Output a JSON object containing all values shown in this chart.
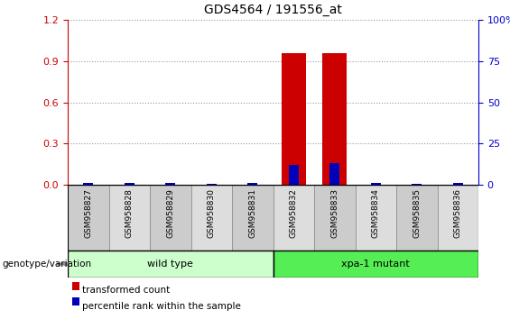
{
  "title": "GDS4564 / 191556_at",
  "samples": [
    "GSM958827",
    "GSM958828",
    "GSM958829",
    "GSM958830",
    "GSM958831",
    "GSM958832",
    "GSM958833",
    "GSM958834",
    "GSM958835",
    "GSM958836"
  ],
  "transformed_count": [
    0.0,
    0.0,
    0.0,
    0.0,
    0.0,
    0.96,
    0.96,
    0.0,
    0.0,
    0.0
  ],
  "percentile_rank": [
    1.0,
    1.0,
    1.0,
    0.5,
    1.0,
    12.0,
    13.0,
    1.0,
    0.5,
    1.0
  ],
  "ylim_left": [
    0,
    1.2
  ],
  "ylim_right": [
    0,
    100
  ],
  "yticks_left": [
    0,
    0.3,
    0.6,
    0.9,
    1.2
  ],
  "yticks_right": [
    0,
    25,
    50,
    75,
    100
  ],
  "bar_color_red": "#cc0000",
  "bar_color_blue": "#0000bb",
  "groups": [
    {
      "label": "wild type",
      "start": 0,
      "end": 4,
      "color": "#ccffcc"
    },
    {
      "label": "xpa-1 mutant",
      "start": 5,
      "end": 9,
      "color": "#55ee55"
    }
  ],
  "group_label": "genotype/variation",
  "legend_red": "transformed count",
  "legend_blue": "percentile rank within the sample",
  "tick_color_left": "#cc0000",
  "tick_color_right": "#0000cc",
  "grid_style": "dotted",
  "sample_box_color": "#cccccc",
  "sample_box_color2": "#dddddd"
}
